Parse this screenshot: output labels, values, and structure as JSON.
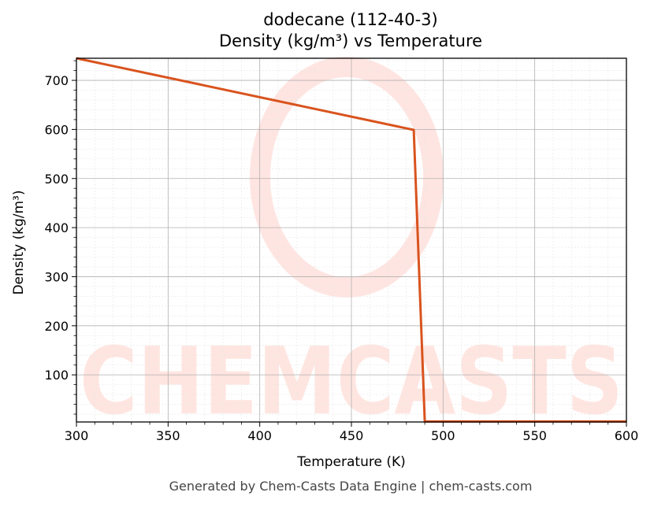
{
  "chart_data": {
    "type": "line",
    "title": "dodecane (112-40-3)",
    "subtitle": "Density (kg/m³) vs Temperature",
    "xlabel": "Temperature (K)",
    "ylabel": "Density (kg/m³)",
    "xlim": [
      300,
      600
    ],
    "ylim": [
      4,
      745
    ],
    "x_ticks": [
      300,
      350,
      400,
      450,
      500,
      550,
      600
    ],
    "y_ticks": [
      100,
      200,
      300,
      400,
      500,
      600,
      700
    ],
    "grid": true,
    "series": [
      {
        "color": "#d9531e",
        "x": [
          300,
          484,
          490,
          600
        ],
        "y": [
          745,
          599,
          5,
          5
        ]
      }
    ]
  },
  "footer": "Generated by Chem-Casts Data Engine | chem-casts.com",
  "watermark": "CHEMCASTS"
}
